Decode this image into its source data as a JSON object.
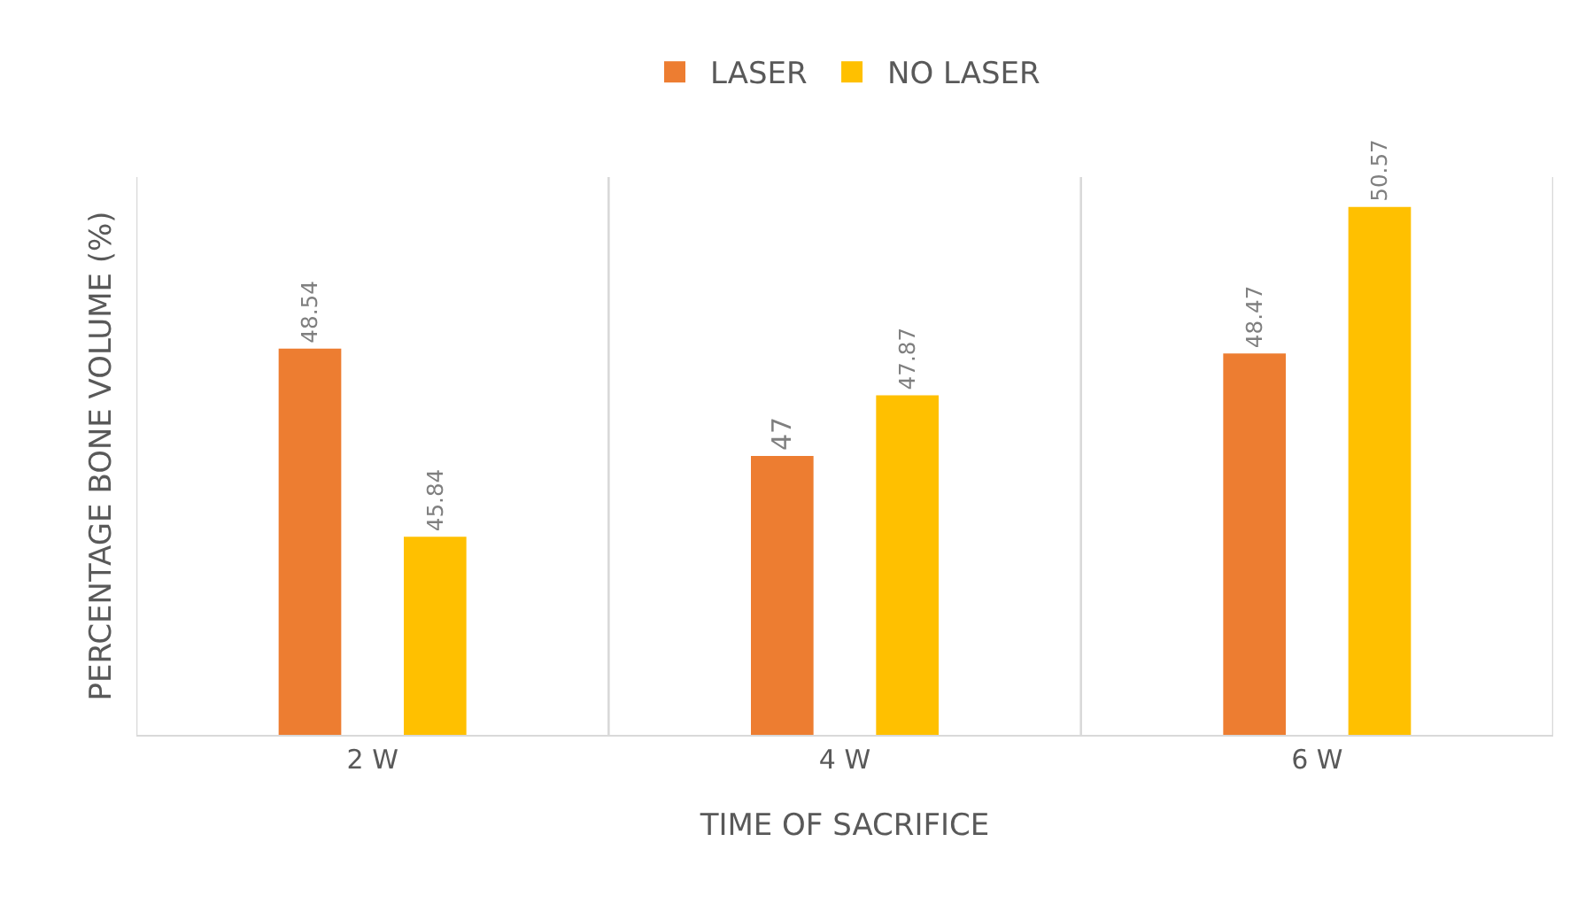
{
  "chart_data": {
    "type": "bar",
    "xlabel": "TIME OF SACRIFICE",
    "ylabel": "PERCENTAGE BONE VOLUME (%)",
    "categories": [
      "2 W",
      "4 W",
      "6 W"
    ],
    "series": [
      {
        "name": "LASER",
        "color": "#ed7d31",
        "values": [
          48.54,
          47,
          48.47
        ]
      },
      {
        "name": "NO LASER",
        "color": "#ffc000",
        "values": [
          45.84,
          47.87,
          50.57
        ]
      }
    ],
    "ylim": [
      43,
      51
    ],
    "tick_labels": "x",
    "grid": "x",
    "legend": "top",
    "data_labels": true
  }
}
